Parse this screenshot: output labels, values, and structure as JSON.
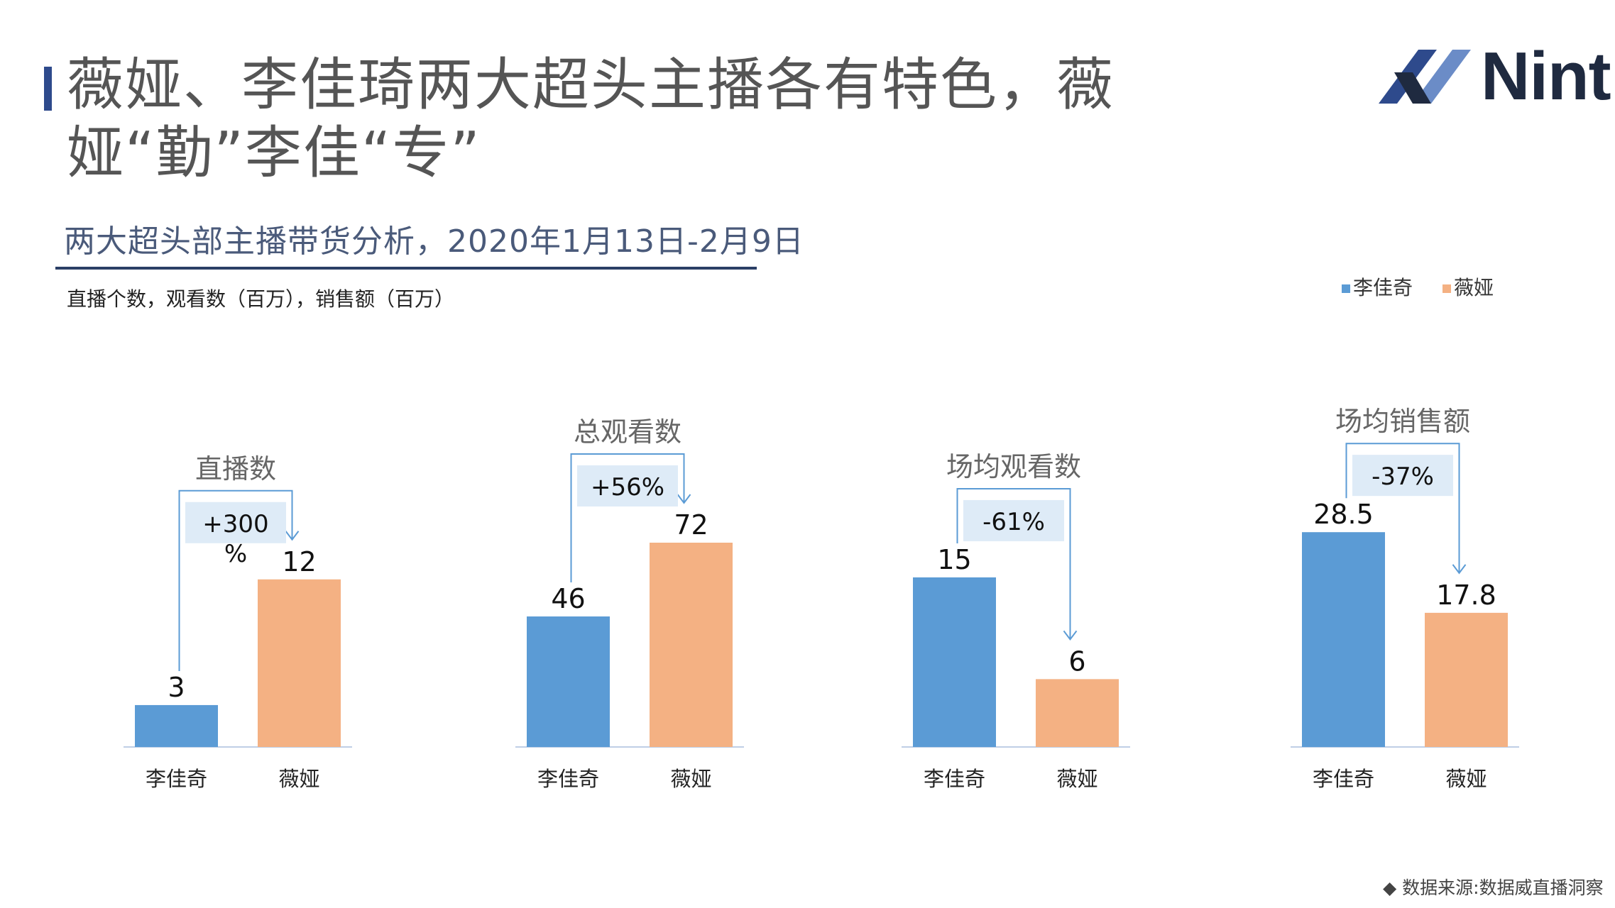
{
  "header": {
    "title": "薇娅、李佳琦两大超头主播各有特色，薇娅“勤”李佳“专”",
    "logo_text": "Nint",
    "subtitle": "两大超头部主播带货分析，2020年1月13日-2月9日",
    "units": "直播个数，观看数（百万），销售额（百万）",
    "source": "◆ 数据来源:数据威直播洞察"
  },
  "colors": {
    "li": "#5b9bd5",
    "wei": "#f4b183",
    "pct_box": "#deebf7",
    "bracket": "#5b9bd5",
    "title_bar": "#2e4a8c"
  },
  "legend": [
    {
      "name": "李佳奇",
      "color": "#5b9bd5"
    },
    {
      "name": "薇娅",
      "color": "#f4b183"
    }
  ],
  "chart_data": [
    {
      "type": "bar",
      "title": "直播数",
      "categories": [
        "李佳奇",
        "薇娅"
      ],
      "values": [
        3,
        12
      ],
      "labels": [
        "3",
        "12"
      ],
      "change": "+300%"
    },
    {
      "type": "bar",
      "title": "总观看数",
      "categories": [
        "李佳奇",
        "薇娅"
      ],
      "values": [
        46,
        72
      ],
      "labels": [
        "46",
        "72"
      ],
      "change": "+56%"
    },
    {
      "type": "bar",
      "title": "场均观看数",
      "categories": [
        "李佳奇",
        "薇娅"
      ],
      "values": [
        15,
        6
      ],
      "labels": [
        "15",
        "6"
      ],
      "change": "-61%"
    },
    {
      "type": "bar",
      "title": "场均销售额",
      "categories": [
        "李佳奇",
        "薇娅"
      ],
      "values": [
        28.5,
        17.8
      ],
      "labels": [
        "28.5",
        "17.8"
      ],
      "change": "-37%"
    }
  ]
}
